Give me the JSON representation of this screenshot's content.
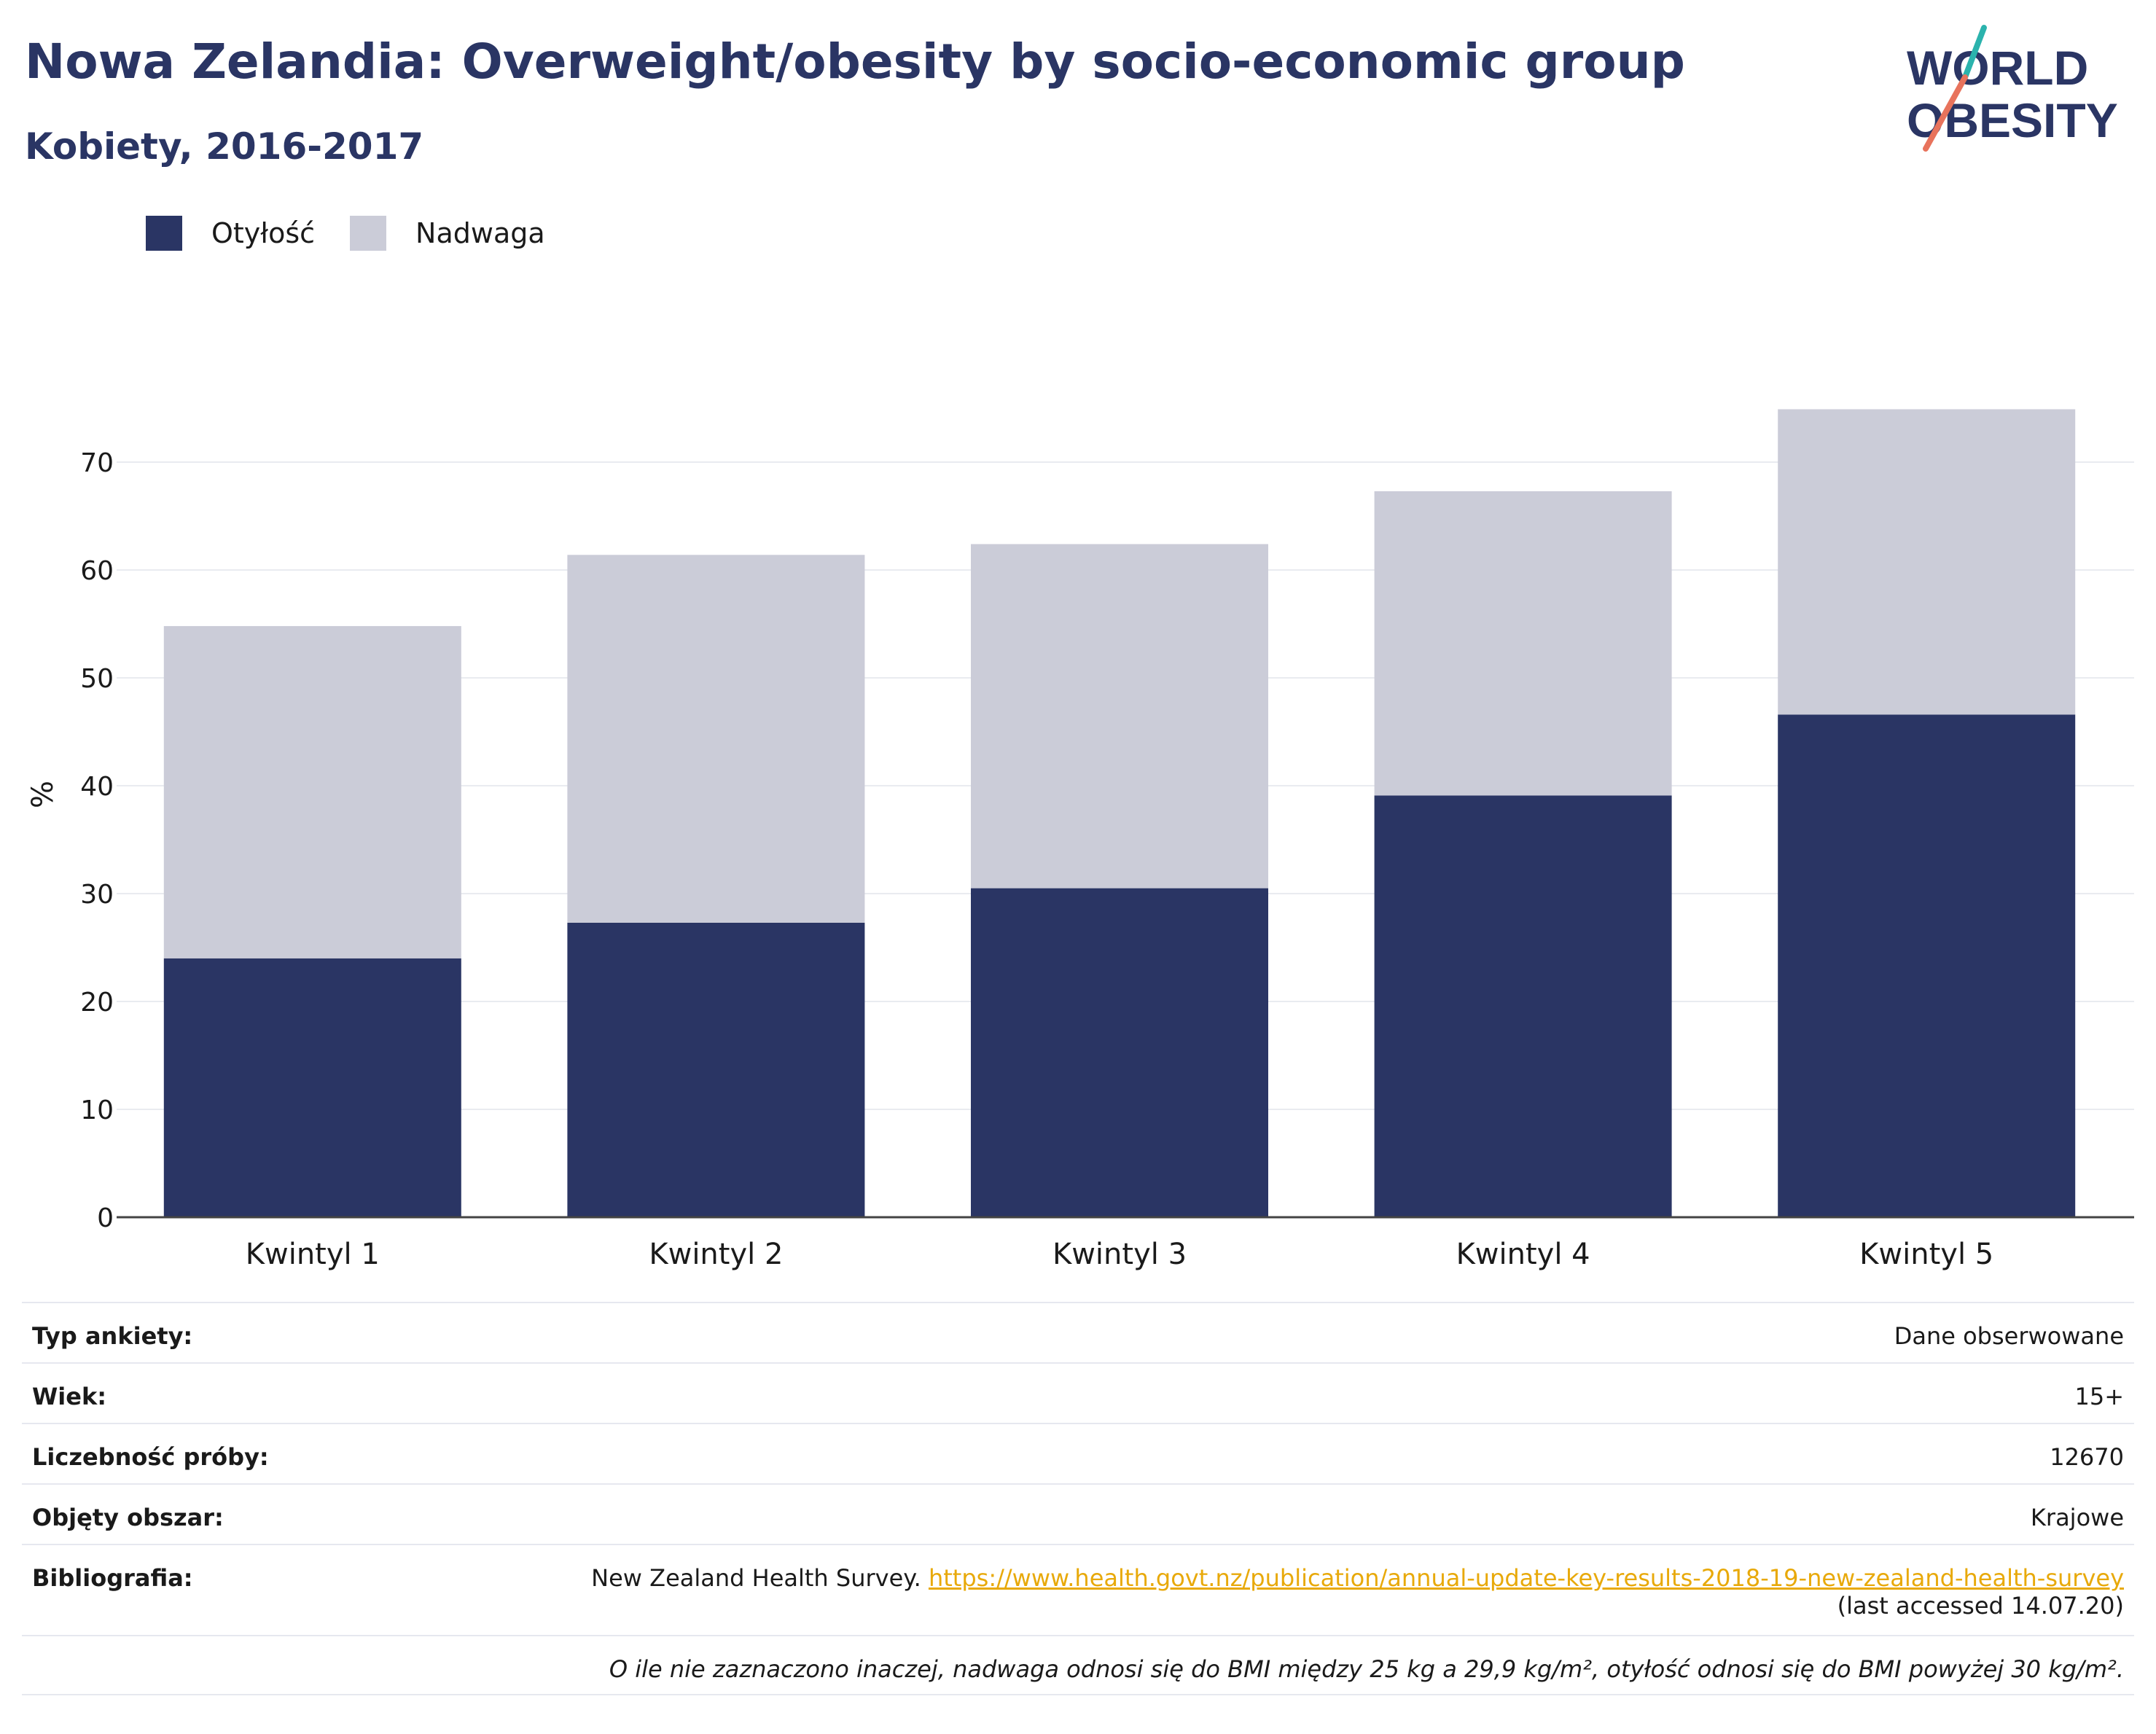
{
  "header": {
    "title": "Nowa Zelandia: Overweight/obesity by socio-economic group",
    "subtitle": "Kobiety, 2016-2017"
  },
  "logo": {
    "line1": "WORLD",
    "line2": "OBESITY"
  },
  "colors": {
    "obesity": "#2a3564",
    "overweight": "#cbccd8",
    "title": "#2a3564",
    "link": "#e8a90a",
    "logo_teal": "#2bb3ad",
    "logo_coral": "#e8735c"
  },
  "legend": [
    {
      "label": "Otyłość",
      "color": "#2a3564"
    },
    {
      "label": "Nadwaga",
      "color": "#cbccd8"
    }
  ],
  "chart_data": {
    "type": "bar",
    "stacked": true,
    "categories": [
      "Kwintyl 1",
      "Kwintyl 2",
      "Kwintyl 3",
      "Kwintyl 4",
      "Kwintyl 5"
    ],
    "series": [
      {
        "name": "Otyłość",
        "values": [
          24.0,
          27.3,
          30.5,
          39.1,
          46.6
        ]
      },
      {
        "name": "Nadwaga",
        "values": [
          30.8,
          34.1,
          31.9,
          28.2,
          28.3
        ]
      }
    ],
    "ylabel": "%",
    "xlabel": "",
    "ylim": [
      0,
      75
    ],
    "yticks": [
      0,
      10,
      20,
      30,
      40,
      50,
      60,
      70
    ],
    "grid": true
  },
  "meta": {
    "survey_type_label": "Typ ankiety:",
    "survey_type_value": "Dane obserwowane",
    "age_label": "Wiek:",
    "age_value": "15+",
    "sample_label": "Liczebność próby:",
    "sample_value": "12670",
    "area_label": "Objęty obszar:",
    "area_value": "Krajowe",
    "bib_label": "Bibliografia:",
    "bib_text": "New Zealand Health Survey.",
    "bib_url": "https://www.health.govt.nz/publication/annual-update-key-results-2018-19-new-zealand-health-survey",
    "bib_accessed": "(last accessed 14.07.20)",
    "note": "O ile nie zaznaczono inaczej, nadwaga odnosi się do BMI między 25 kg a 29,9 kg/m², otyłość odnosi się do BMI powyżej 30 kg/m²."
  }
}
